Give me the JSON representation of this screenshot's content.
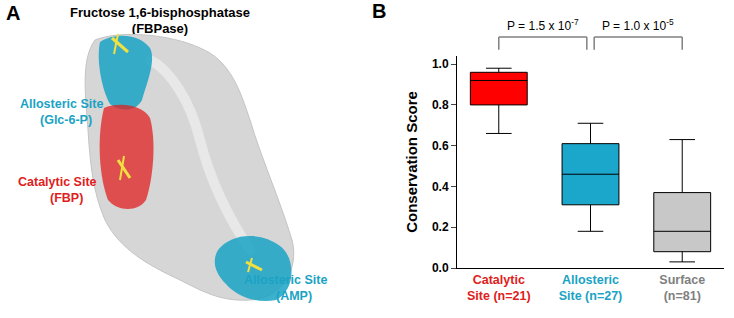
{
  "panels": [
    {
      "label": "A",
      "title": [
        "Fructose 1,6-bisphosphatase",
        "(FBPase)"
      ],
      "sites": [
        {
          "name": "Allosteric Site",
          "ligand": "(Glc-6-P)",
          "color": "#1aa3c4"
        },
        {
          "name": "Catalytic Site",
          "ligand": "(FBP)",
          "color": "#e02020"
        },
        {
          "name": "Allosteric Site",
          "ligand": "(AMP)",
          "color": "#1aa3c4"
        }
      ]
    }
  ],
  "chart_data": {
    "panel": "B",
    "type": "box",
    "y_label": "Conservation Score",
    "categories": [
      "Catalytic Site (n=21)",
      "Allosteric Site (n=27)",
      "Surface (n=81)"
    ],
    "colors": [
      "#ff0000",
      "#1ba6cc",
      "#c8c8c8"
    ],
    "label_colors": [
      "#e02020",
      "#1aa3c4",
      "#808080"
    ],
    "min": [
      0.66,
      0.18,
      0.03
    ],
    "q1": [
      0.8,
      0.31,
      0.08
    ],
    "median": [
      0.92,
      0.46,
      0.18
    ],
    "q3": [
      0.96,
      0.61,
      0.37
    ],
    "max": [
      0.98,
      0.71,
      0.63
    ],
    "ylim": [
      0,
      1.04
    ],
    "yticks": [
      {
        "value": 0,
        "label": "0.0"
      },
      {
        "value": 0.2,
        "label": "0.2"
      },
      {
        "value": 0.4,
        "label": "0.4"
      },
      {
        "value": 0.6,
        "label": "0.6"
      },
      {
        "value": 0.8,
        "label": "0.8"
      },
      {
        "value": 1,
        "label": "1.0"
      }
    ],
    "grid": false,
    "comparisons": [
      {
        "between": [
          0,
          1
        ],
        "text": "P = 1.5 x 10",
        "exponent": "-7"
      },
      {
        "between": [
          1,
          2
        ],
        "text": "P = 1.0 x 10",
        "exponent": "-5"
      }
    ]
  }
}
